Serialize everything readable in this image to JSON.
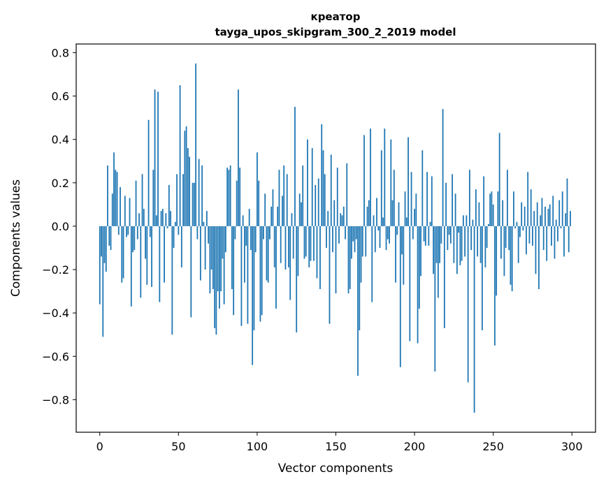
{
  "chart_data": {
    "type": "bar",
    "title": "креатор",
    "subtitle": "tayga_upos_skipgram_300_2_2019 model",
    "xlabel": "Vector components",
    "ylabel": "Components values",
    "xlim": [
      -15,
      315
    ],
    "ylim": [
      -0.95,
      0.84
    ],
    "xticks": [
      0,
      50,
      100,
      150,
      200,
      250,
      300
    ],
    "xtick_labels": [
      "0",
      "50",
      "100",
      "150",
      "200",
      "250",
      "300"
    ],
    "yticks": [
      -0.8,
      -0.6,
      -0.4,
      -0.2,
      0.0,
      0.2,
      0.4,
      0.6,
      0.8
    ],
    "ytick_labels": [
      "−0.8",
      "−0.6",
      "−0.4",
      "−0.2",
      "0.0",
      "0.2",
      "0.4",
      "0.6",
      "0.8"
    ],
    "grid": false,
    "bar_color": "#1f77b4",
    "x_start": 0,
    "values": [
      -0.36,
      -0.14,
      -0.51,
      -0.17,
      -0.21,
      0.28,
      -0.09,
      -0.11,
      0.15,
      0.34,
      0.26,
      0.25,
      -0.04,
      0.18,
      -0.26,
      -0.24,
      0.14,
      -0.05,
      -0.04,
      0.13,
      -0.37,
      -0.12,
      -0.11,
      0.21,
      -0.06,
      0.06,
      -0.33,
      0.24,
      0.08,
      -0.15,
      -0.27,
      0.49,
      -0.05,
      -0.28,
      0.26,
      0.63,
      0.05,
      0.62,
      -0.35,
      0.07,
      0.08,
      -0.26,
      0.06,
      -0.01,
      0.19,
      0.07,
      -0.5,
      -0.1,
      0.02,
      0.24,
      -0.04,
      0.65,
      -0.19,
      0.24,
      0.44,
      0.46,
      0.36,
      0.32,
      -0.42,
      0.2,
      0.2,
      0.75,
      -0.06,
      0.31,
      -0.25,
      0.28,
      0.02,
      -0.2,
      0.07,
      -0.08,
      -0.31,
      -0.2,
      -0.29,
      -0.47,
      -0.5,
      -0.3,
      -0.38,
      -0.3,
      -0.15,
      -0.36,
      -0.12,
      0.27,
      0.26,
      0.28,
      -0.29,
      -0.41,
      -0.06,
      0.21,
      0.63,
      0.27,
      -0.46,
      0.05,
      -0.26,
      -0.09,
      -0.45,
      0.08,
      -0.11,
      -0.64,
      -0.48,
      -0.12,
      0.34,
      0.21,
      -0.44,
      -0.41,
      -0.06,
      0.15,
      -0.25,
      -0.26,
      -0.06,
      0.09,
      0.17,
      -0.19,
      -0.38,
      0.09,
      0.26,
      -0.17,
      0.14,
      0.28,
      -0.2,
      0.24,
      -0.19,
      -0.34,
      0.06,
      -0.15,
      0.55,
      -0.49,
      -0.23,
      0.15,
      0.11,
      0.28,
      -0.15,
      -0.14,
      0.4,
      -0.19,
      -0.16,
      0.36,
      -0.16,
      0.19,
      -0.24,
      0.22,
      -0.29,
      0.47,
      0.35,
      0.24,
      -0.1,
      0.07,
      -0.45,
      0.33,
      -0.12,
      0.12,
      -0.31,
      0.27,
      -0.08,
      0.06,
      0.05,
      0.09,
      -0.06,
      0.29,
      -0.31,
      -0.29,
      -0.15,
      -0.07,
      -0.12,
      -0.06,
      -0.69,
      -0.48,
      -0.26,
      -0.14,
      0.42,
      -0.14,
      0.09,
      0.12,
      0.45,
      -0.35,
      0.05,
      -0.12,
      0.13,
      -0.02,
      -0.1,
      0.35,
      0.04,
      0.45,
      -0.11,
      -0.06,
      -0.08,
      0.4,
      0.12,
      0.26,
      -0.26,
      -0.04,
      0.11,
      -0.65,
      -0.13,
      -0.27,
      0.16,
      0.04,
      0.41,
      -0.53,
      0.25,
      -0.06,
      0.08,
      0.15,
      -0.54,
      -0.38,
      -0.23,
      0.35,
      -0.07,
      -0.09,
      0.25,
      -0.09,
      0.02,
      0.23,
      -0.22,
      -0.67,
      -0.17,
      -0.33,
      -0.17,
      -0.08,
      0.54,
      -0.47,
      0.2,
      -0.11,
      -0.04,
      -0.08,
      0.24,
      -0.17,
      0.15,
      -0.22,
      -0.03,
      -0.18,
      -0.16,
      0.05,
      -0.14,
      0.05,
      -0.72,
      0.26,
      -0.11,
      0.03,
      -0.86,
      0.17,
      -0.14,
      0.11,
      -0.17,
      -0.48,
      0.23,
      -0.19,
      -0.1,
      0.01,
      0.15,
      0.16,
      0.1,
      -0.55,
      -0.32,
      0.16,
      0.43,
      -0.15,
      0.12,
      -0.23,
      -0.1,
      0.26,
      -0.11,
      -0.27,
      -0.3,
      0.16,
      -0.01,
      0.02,
      -0.17,
      -0.05,
      0.11,
      -0.02,
      0.09,
      -0.13,
      0.25,
      -0.08,
      0.17,
      -0.09,
      0.07,
      -0.22,
      0.11,
      -0.29,
      0.05,
      0.13,
      -0.11,
      0.09,
      -0.16,
      0.08,
      0.1,
      -0.09,
      0.14,
      -0.15,
      0.03,
      -0.07,
      0.12,
      -0.01,
      0.16,
      -0.14,
      0.06,
      0.22,
      -0.12,
      0.07
    ]
  }
}
